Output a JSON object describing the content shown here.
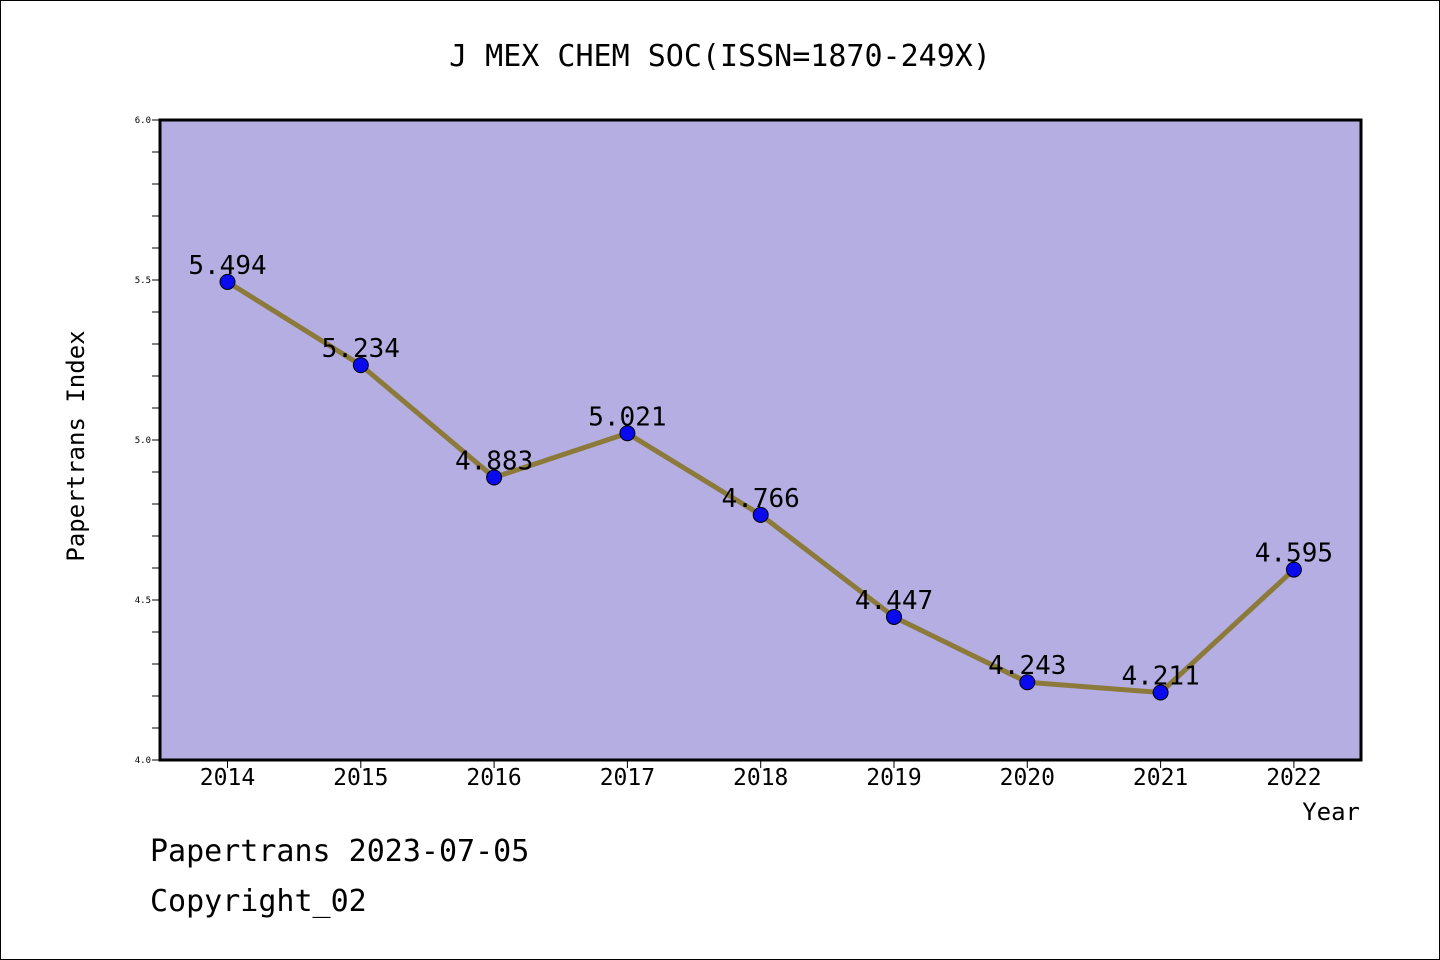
{
  "chart_data": {
    "type": "line",
    "title": "J MEX CHEM SOC(ISSN=1870-249X)",
    "xlabel": "Year",
    "ylabel": "Papertrans Index",
    "x": [
      "2014",
      "2015",
      "2016",
      "2017",
      "2018",
      "2019",
      "2020",
      "2021",
      "2022"
    ],
    "values": [
      5.494,
      5.234,
      4.883,
      5.021,
      4.766,
      4.447,
      4.243,
      4.211,
      4.595
    ],
    "data_labels": [
      "5.494",
      "5.234",
      "4.883",
      "5.021",
      "4.766",
      "4.447",
      "4.243",
      "4.211",
      "4.595"
    ],
    "ylim": [
      4.0,
      6.0
    ],
    "y_ticks": [
      "4.0",
      "4.5",
      "5.0",
      "5.5",
      "6.0"
    ],
    "grid": false,
    "legend": "none",
    "colors": {
      "plot_background": "#b5aee2",
      "line": "#8c7a3b",
      "marker": "#0a0aee"
    }
  },
  "footer": {
    "line1": "Papertrans 2023-07-05",
    "line2": "Copyright_02"
  }
}
